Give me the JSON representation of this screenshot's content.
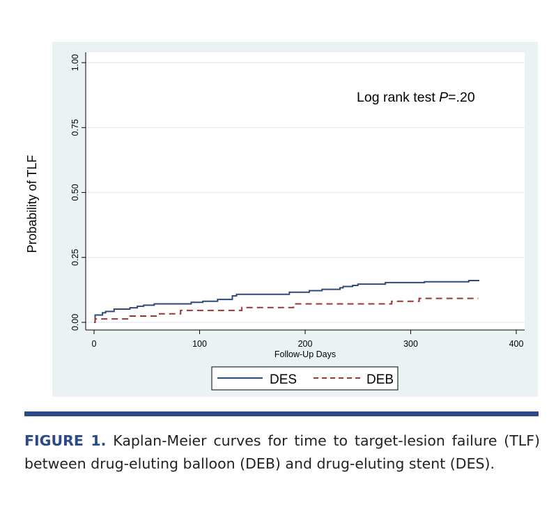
{
  "chart_data": {
    "type": "line",
    "subtype": "kaplan-meier step",
    "xlabel": "Follow-Up Days",
    "ylabel": "Probability of TLF",
    "xlim": [
      0,
      400
    ],
    "ylim": [
      0,
      1
    ],
    "xticks": [
      0,
      100,
      200,
      300,
      400
    ],
    "yticks": [
      "0.00",
      "0.25",
      "0.50",
      "0.75",
      "1.00"
    ],
    "grid": "horizontal",
    "legend_position": "bottom",
    "annotation": {
      "text": "Log rank test ",
      "italic": "P",
      "suffix": "=.20"
    },
    "series": [
      {
        "name": "DES",
        "color": "#2e4a7a",
        "style": "solid",
        "x": [
          0,
          1,
          8,
          11,
          19,
          34,
          41,
          47,
          57,
          92,
          103,
          117,
          131,
          135,
          185,
          204,
          216,
          233,
          236,
          245,
          250,
          276,
          313,
          355,
          365
        ],
        "y": [
          0,
          0.028,
          0.037,
          0.042,
          0.051,
          0.056,
          0.062,
          0.066,
          0.071,
          0.077,
          0.081,
          0.088,
          0.102,
          0.108,
          0.116,
          0.122,
          0.127,
          0.133,
          0.138,
          0.142,
          0.147,
          0.153,
          0.156,
          0.161,
          0.161
        ]
      },
      {
        "name": "DEB",
        "color": "#9b3535",
        "style": "dashed",
        "x": [
          0,
          1,
          34,
          62,
          82,
          140,
          189,
          282,
          308,
          364
        ],
        "y": [
          0,
          0.013,
          0.024,
          0.033,
          0.046,
          0.057,
          0.071,
          0.081,
          0.092,
          0.092
        ]
      }
    ]
  },
  "caption": {
    "label": "FIGURE 1.",
    "text": " Kaplan-Meier curves for time to target-lesion failure (TLF) between drug-eluting balloon (DEB) and drug-eluting stent (DES)."
  }
}
